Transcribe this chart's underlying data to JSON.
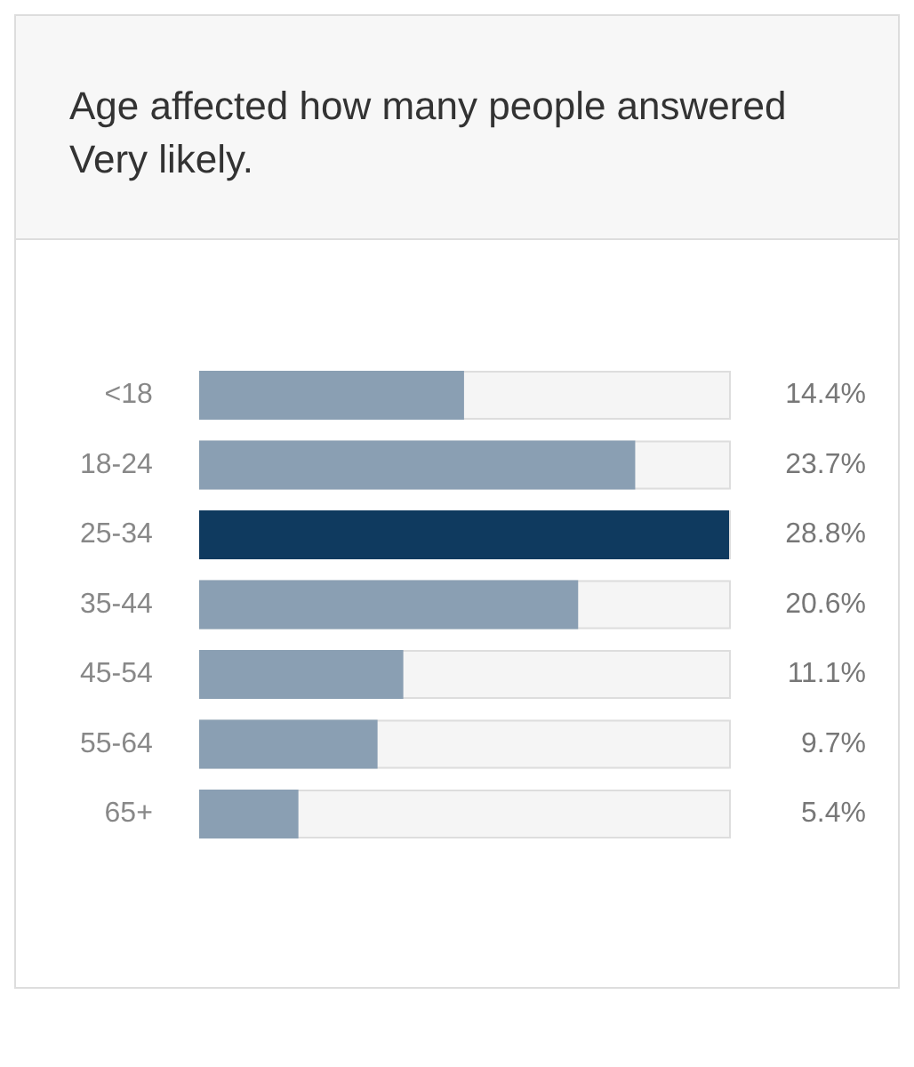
{
  "chart_data": {
    "type": "bar",
    "orientation": "horizontal",
    "title": "Age affected how many people answered Very likely.",
    "categories": [
      "<18",
      "18-24",
      "25-34",
      "35-44",
      "45-54",
      "55-64",
      "65+"
    ],
    "values": [
      14.4,
      23.7,
      28.8,
      20.6,
      11.1,
      9.7,
      5.4
    ],
    "colors": [
      "#8a9fb3",
      "#8a9fb3",
      "#0f3a5f",
      "#8a9fb3",
      "#8a9fb3",
      "#8a9fb3",
      "#8a9fb3"
    ],
    "value_labels": [
      "14.4%",
      "23.7%",
      "28.8%",
      "20.6%",
      "11.1%",
      "9.7%",
      "5.4%"
    ],
    "xlim": [
      0,
      28.8
    ],
    "grid": false,
    "legend": false
  }
}
